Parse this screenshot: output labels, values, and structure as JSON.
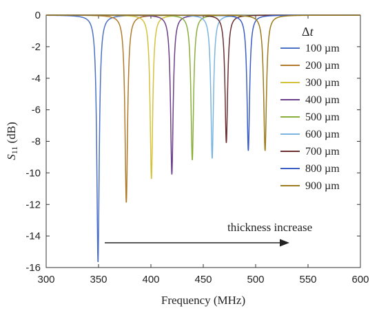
{
  "chart_data": {
    "type": "line",
    "xlabel": "Frequency (MHz)",
    "ylabel_main": "S",
    "ylabel_sub": "11",
    "ylabel_unit": " (dB)",
    "xlim": [
      300,
      600
    ],
    "ylim": [
      -16,
      0
    ],
    "x_ticks": [
      "300",
      "350",
      "400",
      "450",
      "500",
      "550",
      "600"
    ],
    "y_ticks": [
      "0",
      "-2",
      "-4",
      "-6",
      "-8",
      "-10",
      "-12",
      "-14",
      "-16"
    ],
    "grid": false,
    "legend_title_main": "Δ",
    "legend_title_italic": "t",
    "legend_position": "top-right",
    "annotation": "thickness increase",
    "series": [
      {
        "name": "100 µm",
        "color": "#4a6fc4",
        "center": 349.5,
        "min": -15.7,
        "width": 1.4
      },
      {
        "name": "200 µm",
        "color": "#b07a2a",
        "center": 376.5,
        "min": -11.9,
        "width": 1.5
      },
      {
        "name": "300 µm",
        "color": "#d4c23a",
        "center": 400.5,
        "min": -10.4,
        "width": 1.5
      },
      {
        "name": "400 µm",
        "color": "#6a3d8a",
        "center": 420.0,
        "min": -10.1,
        "width": 1.5
      },
      {
        "name": "500 µm",
        "color": "#8aae3a",
        "center": 439.5,
        "min": -9.2,
        "width": 1.5
      },
      {
        "name": "600 µm",
        "color": "#7ab4e0",
        "center": 458.5,
        "min": -9.1,
        "width": 1.5
      },
      {
        "name": "700 µm",
        "color": "#6a2e2e",
        "center": 472.0,
        "min": -8.1,
        "width": 1.5
      },
      {
        "name": "800 µm",
        "color": "#3a5cc4",
        "center": 493.0,
        "min": -8.6,
        "width": 1.5
      },
      {
        "name": "900 µm",
        "color": "#9a7a1a",
        "center": 509.0,
        "min": -8.6,
        "width": 1.6
      }
    ]
  }
}
